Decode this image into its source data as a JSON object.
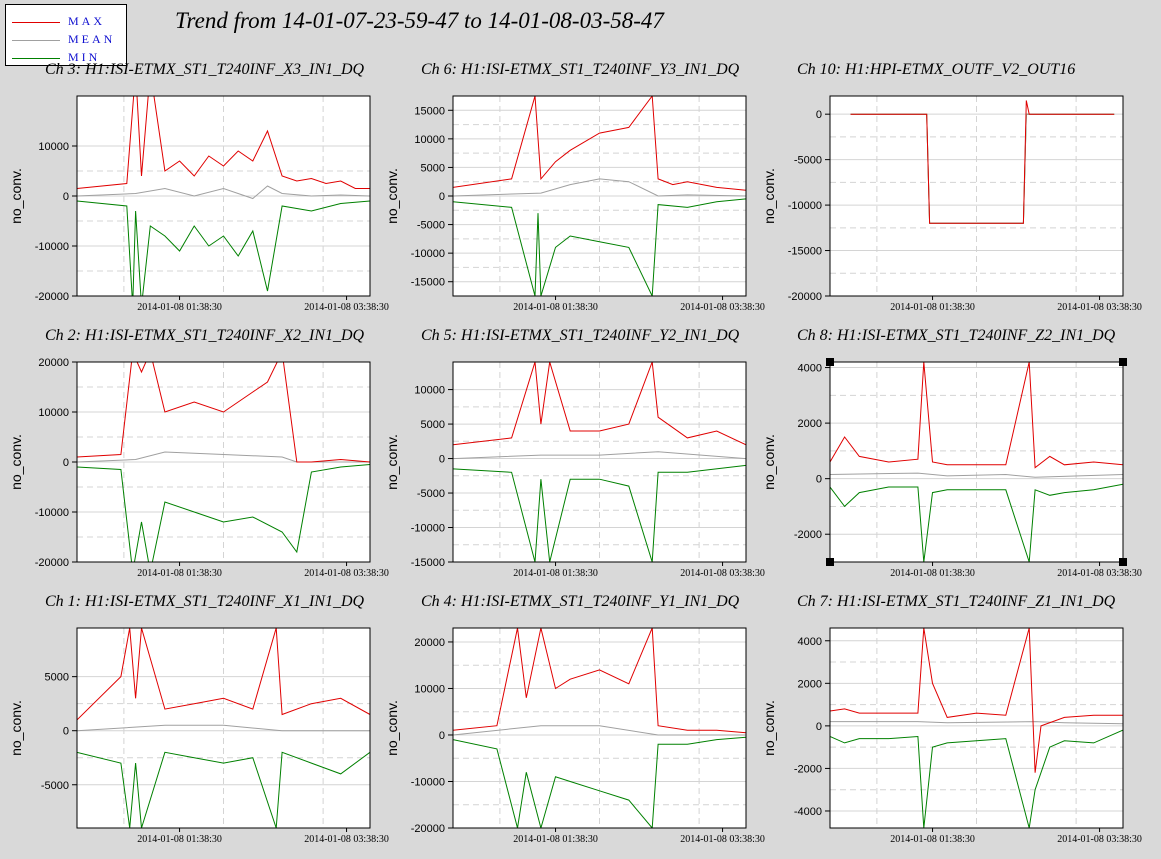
{
  "title": "Trend from 14-01-07-23-59-47 to 14-01-08-03-58-47",
  "legend": [
    {
      "name": "MAX",
      "color": "#e00000"
    },
    {
      "name": "MEAN",
      "color": "#a0a0a0"
    },
    {
      "name": "MIN",
      "color": "#008000"
    }
  ],
  "chart_data": [
    {
      "type": "line",
      "title": "Ch 3: H1:ISI-ETMX_ST1_T240INF_X3_IN1_DQ",
      "ylabel": "no_conv.",
      "ylim": [
        -20000,
        20000
      ],
      "yticks": [
        -20000,
        -10000,
        0,
        10000
      ],
      "xticks": [
        "2014-01-08 01:38:30",
        "2014-01-08 03:38:30"
      ],
      "series": [
        {
          "name": "MAX",
          "x": [
            0.0,
            0.17,
            0.2,
            0.22,
            0.25,
            0.3,
            0.35,
            0.4,
            0.45,
            0.5,
            0.55,
            0.6,
            0.65,
            0.7,
            0.75,
            0.8,
            0.85,
            0.9,
            0.95,
            1.0
          ],
          "y": [
            1500,
            2500,
            25000,
            4000,
            25000,
            5000,
            7000,
            4000,
            8000,
            6000,
            9000,
            7000,
            13000,
            4000,
            3000,
            3500,
            2500,
            3000,
            1500,
            1500
          ]
        },
        {
          "name": "MEAN",
          "x": [
            0.0,
            0.2,
            0.3,
            0.4,
            0.5,
            0.6,
            0.65,
            0.7,
            0.8,
            0.9,
            1.0
          ],
          "y": [
            0,
            500,
            1500,
            0,
            1500,
            -500,
            2000,
            500,
            0,
            200,
            0
          ]
        },
        {
          "name": "MIN",
          "x": [
            0.0,
            0.17,
            0.19,
            0.2,
            0.22,
            0.25,
            0.3,
            0.35,
            0.4,
            0.45,
            0.5,
            0.55,
            0.6,
            0.65,
            0.7,
            0.8,
            0.9,
            1.0
          ],
          "y": [
            -1000,
            -2000,
            -22000,
            -3000,
            -22000,
            -6000,
            -8000,
            -11000,
            -6000,
            -10000,
            -8000,
            -12000,
            -7000,
            -19000,
            -2000,
            -3000,
            -1500,
            -1000
          ]
        }
      ]
    },
    {
      "type": "line",
      "title": "Ch 6: H1:ISI-ETMX_ST1_T240INF_Y3_IN1_DQ",
      "ylabel": "no_conv.",
      "ylim": [
        -17500,
        17500
      ],
      "yticks": [
        -15000,
        -10000,
        -5000,
        0,
        5000,
        10000,
        15000
      ],
      "xticks": [
        "2014-01-08 01:38:30",
        "2014-01-08 03:38:30"
      ],
      "series": [
        {
          "name": "MAX",
          "x": [
            0.0,
            0.2,
            0.28,
            0.3,
            0.35,
            0.4,
            0.5,
            0.6,
            0.68,
            0.7,
            0.75,
            0.8,
            0.9,
            1.0
          ],
          "y": [
            1500,
            3000,
            17500,
            3000,
            6000,
            8000,
            11000,
            12000,
            17500,
            3000,
            2000,
            2500,
            1500,
            1000
          ]
        },
        {
          "name": "MEAN",
          "x": [
            0.0,
            0.3,
            0.4,
            0.5,
            0.6,
            0.7,
            0.8,
            1.0
          ],
          "y": [
            0,
            500,
            2000,
            3000,
            2500,
            0,
            200,
            0
          ]
        },
        {
          "name": "MIN",
          "x": [
            0.0,
            0.2,
            0.28,
            0.29,
            0.3,
            0.35,
            0.4,
            0.5,
            0.6,
            0.68,
            0.7,
            0.8,
            0.9,
            1.0
          ],
          "y": [
            -1000,
            -2000,
            -17500,
            -3000,
            -17500,
            -9000,
            -7000,
            -8000,
            -9000,
            -17500,
            -1500,
            -2000,
            -1000,
            -500
          ]
        }
      ]
    },
    {
      "type": "line",
      "title": "Ch 10: H1:HPI-ETMX_OUTF_V2_OUT16",
      "ylabel": "no_conv.",
      "ylim": [
        -20000,
        2000
      ],
      "yticks": [
        -20000,
        -15000,
        -10000,
        -5000,
        0
      ],
      "xticks": [
        "2014-01-08 01:38:30",
        "2014-01-08 03:38:30"
      ],
      "series": [
        {
          "name": "MAX",
          "x": [
            0.07,
            0.33,
            0.34,
            0.66,
            0.67,
            0.68,
            0.97
          ],
          "y": [
            0,
            0,
            -12000,
            -12000,
            1500,
            0,
            0
          ]
        },
        {
          "name": "MEAN",
          "x": [
            0.07,
            0.33,
            0.34,
            0.66,
            0.67,
            0.97
          ],
          "y": [
            0,
            0,
            -12000,
            -12000,
            0,
            0
          ]
        },
        {
          "name": "MIN",
          "x": [
            0.07,
            0.33,
            0.34,
            0.66,
            0.67,
            0.97
          ],
          "y": [
            0,
            0,
            -12000,
            -12000,
            0,
            0
          ]
        }
      ]
    },
    {
      "type": "line",
      "title": "Ch 2: H1:ISI-ETMX_ST1_T240INF_X2_IN1_DQ",
      "ylabel": "no_conv.",
      "ylim": [
        -20000,
        20000
      ],
      "yticks": [
        -20000,
        -10000,
        0,
        10000,
        20000
      ],
      "xticks": [
        "2014-01-08 01:38:30",
        "2014-01-08 03:38:30"
      ],
      "series": [
        {
          "name": "MAX",
          "x": [
            0.0,
            0.15,
            0.19,
            0.22,
            0.25,
            0.3,
            0.4,
            0.5,
            0.6,
            0.65,
            0.7,
            0.75,
            0.8,
            0.9,
            1.0
          ],
          "y": [
            1000,
            1500,
            22000,
            18000,
            22000,
            10000,
            12000,
            10000,
            14000,
            16000,
            22000,
            0,
            0,
            500,
            0
          ]
        },
        {
          "name": "MEAN",
          "x": [
            0.0,
            0.2,
            0.3,
            0.5,
            0.7,
            0.75,
            1.0
          ],
          "y": [
            0,
            500,
            2000,
            1500,
            1000,
            0,
            0
          ]
        },
        {
          "name": "MIN",
          "x": [
            0.0,
            0.15,
            0.19,
            0.22,
            0.25,
            0.3,
            0.4,
            0.5,
            0.6,
            0.7,
            0.75,
            0.8,
            0.9,
            1.0
          ],
          "y": [
            -1000,
            -1500,
            -22000,
            -12000,
            -22000,
            -8000,
            -10000,
            -12000,
            -11000,
            -14000,
            -18000,
            -2000,
            -1000,
            -500
          ]
        }
      ]
    },
    {
      "type": "line",
      "title": "Ch 5: H1:ISI-ETMX_ST1_T240INF_Y2_IN1_DQ",
      "ylabel": "no_conv.",
      "ylim": [
        -15000,
        14000
      ],
      "yticks": [
        -15000,
        -10000,
        -5000,
        0,
        5000,
        10000
      ],
      "xticks": [
        "2014-01-08 01:38:30",
        "2014-01-08 03:38:30"
      ],
      "series": [
        {
          "name": "MAX",
          "x": [
            0.0,
            0.2,
            0.28,
            0.3,
            0.33,
            0.4,
            0.5,
            0.6,
            0.68,
            0.7,
            0.8,
            0.9,
            1.0
          ],
          "y": [
            2000,
            3000,
            14000,
            5000,
            14000,
            4000,
            4000,
            5000,
            14000,
            6000,
            3000,
            4000,
            2000
          ]
        },
        {
          "name": "MEAN",
          "x": [
            0.0,
            0.3,
            0.5,
            0.7,
            1.0
          ],
          "y": [
            0,
            500,
            500,
            1000,
            0
          ]
        },
        {
          "name": "MIN",
          "x": [
            0.0,
            0.2,
            0.28,
            0.3,
            0.33,
            0.4,
            0.5,
            0.6,
            0.68,
            0.7,
            0.8,
            1.0
          ],
          "y": [
            -1500,
            -2000,
            -15000,
            -3000,
            -15000,
            -3000,
            -3000,
            -4000,
            -15000,
            -2000,
            -2000,
            -1000
          ]
        }
      ]
    },
    {
      "type": "line",
      "title": "Ch 8: H1:ISI-ETMX_ST1_T240INF_Z2_IN1_DQ",
      "ylabel": "no_conv.",
      "ylim": [
        -3000,
        4200
      ],
      "yticks": [
        -2000,
        0,
        2000,
        4000
      ],
      "xticks": [
        "2014-01-08 01:38:30",
        "2014-01-08 03:38:30"
      ],
      "series": [
        {
          "name": "MAX",
          "x": [
            0.0,
            0.05,
            0.1,
            0.2,
            0.3,
            0.32,
            0.35,
            0.4,
            0.5,
            0.6,
            0.68,
            0.7,
            0.75,
            0.8,
            0.9,
            1.0
          ],
          "y": [
            600,
            1500,
            800,
            600,
            700,
            4200,
            600,
            500,
            500,
            500,
            4200,
            400,
            800,
            500,
            600,
            500
          ]
        },
        {
          "name": "MEAN",
          "x": [
            0.0,
            0.3,
            0.4,
            0.6,
            0.7,
            1.0
          ],
          "y": [
            150,
            200,
            100,
            150,
            50,
            150
          ]
        },
        {
          "name": "MIN",
          "x": [
            0.0,
            0.05,
            0.1,
            0.2,
            0.3,
            0.32,
            0.35,
            0.4,
            0.5,
            0.6,
            0.68,
            0.7,
            0.75,
            0.8,
            0.9,
            1.0
          ],
          "y": [
            -300,
            -1000,
            -500,
            -300,
            -300,
            -3000,
            -500,
            -400,
            -400,
            -400,
            -3000,
            -400,
            -600,
            -500,
            -400,
            -200
          ]
        }
      ]
    },
    {
      "type": "line",
      "title": "Ch 1: H1:ISI-ETMX_ST1_T240INF_X1_IN1_DQ",
      "ylabel": "no_conv.",
      "ylim": [
        -9000,
        9500
      ],
      "yticks": [
        -5000,
        0,
        5000
      ],
      "xticks": [
        "2014-01-08 01:38:30",
        "2014-01-08 03:38:30"
      ],
      "series": [
        {
          "name": "MAX",
          "x": [
            0.0,
            0.15,
            0.18,
            0.2,
            0.22,
            0.3,
            0.4,
            0.5,
            0.6,
            0.68,
            0.7,
            0.8,
            0.9,
            1.0
          ],
          "y": [
            1000,
            5000,
            9500,
            3000,
            9500,
            2000,
            2500,
            3000,
            2000,
            9500,
            1500,
            2500,
            3000,
            1500
          ]
        },
        {
          "name": "MEAN",
          "x": [
            0.0,
            0.3,
            0.5,
            0.7,
            1.0
          ],
          "y": [
            0,
            500,
            500,
            0,
            0
          ]
        },
        {
          "name": "MIN",
          "x": [
            0.0,
            0.15,
            0.18,
            0.2,
            0.22,
            0.3,
            0.4,
            0.5,
            0.6,
            0.68,
            0.7,
            0.8,
            0.9,
            1.0
          ],
          "y": [
            -2000,
            -3000,
            -9000,
            -3000,
            -9000,
            -2000,
            -2500,
            -3000,
            -2500,
            -9000,
            -2000,
            -3000,
            -4000,
            -2000
          ]
        }
      ]
    },
    {
      "type": "line",
      "title": "Ch 4: H1:ISI-ETMX_ST1_T240INF_Y1_IN1_DQ",
      "ylabel": "no_conv.",
      "ylim": [
        -20000,
        23000
      ],
      "yticks": [
        -20000,
        -10000,
        0,
        10000,
        20000
      ],
      "xticks": [
        "2014-01-08 01:38:30",
        "2014-01-08 03:38:30"
      ],
      "series": [
        {
          "name": "MAX",
          "x": [
            0.0,
            0.15,
            0.22,
            0.25,
            0.3,
            0.35,
            0.4,
            0.5,
            0.6,
            0.68,
            0.7,
            0.8,
            0.9,
            1.0
          ],
          "y": [
            1000,
            2000,
            23000,
            8000,
            23000,
            10000,
            12000,
            14000,
            11000,
            23000,
            2000,
            1000,
            1000,
            500
          ]
        },
        {
          "name": "MEAN",
          "x": [
            0.0,
            0.3,
            0.5,
            0.7,
            1.0
          ],
          "y": [
            0,
            2000,
            2000,
            0,
            0
          ]
        },
        {
          "name": "MIN",
          "x": [
            0.0,
            0.15,
            0.22,
            0.25,
            0.3,
            0.35,
            0.4,
            0.5,
            0.6,
            0.68,
            0.7,
            0.8,
            0.9,
            1.0
          ],
          "y": [
            -1000,
            -3000,
            -20000,
            -8000,
            -20000,
            -9000,
            -10000,
            -12000,
            -14000,
            -20000,
            -2000,
            -2000,
            -1000,
            -500
          ]
        }
      ]
    },
    {
      "type": "line",
      "title": "Ch 7: H1:ISI-ETMX_ST1_T240INF_Z1_IN1_DQ",
      "ylabel": "no_conv.",
      "ylim": [
        -4800,
        4600
      ],
      "yticks": [
        -4000,
        -2000,
        0,
        2000,
        4000
      ],
      "xticks": [
        "2014-01-08 01:38:30",
        "2014-01-08 03:38:30"
      ],
      "series": [
        {
          "name": "MAX",
          "x": [
            0.0,
            0.05,
            0.1,
            0.2,
            0.3,
            0.32,
            0.35,
            0.4,
            0.5,
            0.6,
            0.68,
            0.7,
            0.72,
            0.8,
            0.9,
            1.0
          ],
          "y": [
            700,
            800,
            600,
            600,
            600,
            4600,
            2000,
            400,
            600,
            500,
            4600,
            -2200,
            0,
            400,
            500,
            500
          ]
        },
        {
          "name": "MEAN",
          "x": [
            0.0,
            0.3,
            0.4,
            0.7,
            0.8,
            1.0
          ],
          "y": [
            200,
            200,
            150,
            200,
            150,
            100
          ]
        },
        {
          "name": "MIN",
          "x": [
            0.0,
            0.05,
            0.1,
            0.2,
            0.3,
            0.32,
            0.35,
            0.4,
            0.5,
            0.6,
            0.68,
            0.7,
            0.75,
            0.8,
            0.9,
            1.0
          ],
          "y": [
            -500,
            -800,
            -600,
            -600,
            -500,
            -4800,
            -1000,
            -800,
            -700,
            -600,
            -4800,
            -3000,
            -1000,
            -700,
            -800,
            -200
          ]
        }
      ]
    }
  ]
}
